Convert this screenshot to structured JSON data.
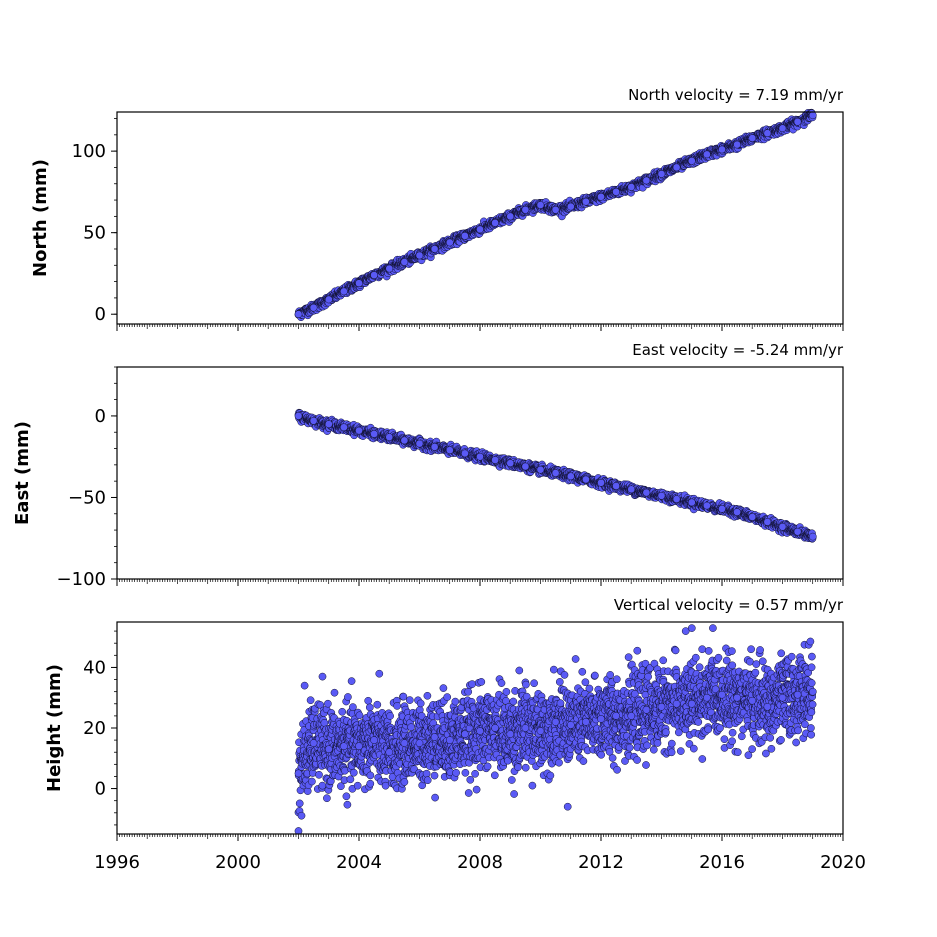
{
  "colors": {
    "marker_fill": "#5a5af5",
    "marker_edge": "#111133",
    "axis": "#000000"
  },
  "chart_data": [
    {
      "type": "scatter",
      "title": "North velocity = 7.19 mm/yr",
      "ylabel": "North (mm)",
      "xlabel": "",
      "xlim": [
        1996,
        2020
      ],
      "ylim": [
        -6,
        124
      ],
      "yticks": [
        0,
        50,
        100
      ],
      "yticklabels": [
        "0",
        "50",
        "100"
      ],
      "grid": false,
      "series": [
        {
          "x": [
            2002.0,
            2002.5,
            2003.0,
            2003.5,
            2004.0,
            2004.5,
            2005.0,
            2005.5,
            2006.0,
            2006.5,
            2007.0,
            2007.5,
            2008.0,
            2008.5,
            2009.0,
            2009.5,
            2010.0,
            2010.5,
            2011.0,
            2011.5,
            2012.0,
            2012.5,
            2013.0,
            2013.5,
            2014.0,
            2014.5,
            2015.0,
            2015.5,
            2016.0,
            2016.5,
            2017.0,
            2017.5,
            2018.0,
            2018.5,
            2019.0
          ],
          "y": [
            0,
            4,
            9,
            14,
            19,
            24,
            28,
            32,
            36,
            40,
            44,
            48,
            52,
            56,
            60,
            64,
            67,
            64,
            66,
            69,
            72,
            75,
            78,
            82,
            86,
            90,
            94,
            98,
            101,
            104,
            108,
            111,
            114,
            118,
            122
          ]
        }
      ]
    },
    {
      "type": "scatter",
      "title": "East velocity = -5.24 mm/yr",
      "ylabel": "East (mm)",
      "xlabel": "",
      "xlim": [
        1996,
        2020
      ],
      "ylim": [
        -100,
        30
      ],
      "yticks": [
        0,
        -50,
        -100
      ],
      "yticklabels": [
        "0",
        "−50",
        "−100"
      ],
      "grid": false,
      "series": [
        {
          "x": [
            2002.0,
            2002.5,
            2003.0,
            2003.5,
            2004.0,
            2004.5,
            2005.0,
            2005.5,
            2006.0,
            2006.5,
            2007.0,
            2007.5,
            2008.0,
            2008.5,
            2009.0,
            2009.5,
            2010.0,
            2010.5,
            2011.0,
            2011.5,
            2012.0,
            2012.5,
            2013.0,
            2013.5,
            2014.0,
            2014.5,
            2015.0,
            2015.5,
            2016.0,
            2016.5,
            2017.0,
            2017.5,
            2018.0,
            2018.5,
            2019.0
          ],
          "y": [
            0,
            -3,
            -5,
            -7,
            -9,
            -11,
            -13,
            -15,
            -17,
            -19,
            -21,
            -23,
            -25,
            -27,
            -29,
            -31,
            -33,
            -35,
            -37,
            -39,
            -41,
            -43,
            -45,
            -47,
            -49,
            -51,
            -53,
            -55,
            -57,
            -59,
            -62,
            -65,
            -68,
            -71,
            -74
          ]
        }
      ]
    },
    {
      "type": "scatter",
      "title": "Vertical velocity = 0.57 mm/yr",
      "ylabel": "Height (mm)",
      "xlabel": "",
      "xlim": [
        1996,
        2020
      ],
      "ylim": [
        -15,
        55
      ],
      "yticks": [
        0,
        20,
        40
      ],
      "yticklabels": [
        "0",
        "20",
        "40"
      ],
      "xticks": [
        1996,
        2000,
        2004,
        2008,
        2012,
        2016,
        2020
      ],
      "xticklabels": [
        "1996",
        "2000",
        "2004",
        "2008",
        "2012",
        "2016",
        "2020"
      ],
      "grid": false,
      "series": [
        {
          "x": [
            2002.0,
            2002.5,
            2003.0,
            2003.5,
            2004.0,
            2004.5,
            2005.0,
            2005.5,
            2006.0,
            2006.5,
            2007.0,
            2007.5,
            2008.0,
            2008.5,
            2009.0,
            2009.5,
            2010.0,
            2010.5,
            2011.0,
            2011.5,
            2012.0,
            2012.5,
            2013.0,
            2013.5,
            2014.0,
            2014.5,
            2015.0,
            2015.5,
            2016.0,
            2016.5,
            2017.0,
            2017.5,
            2018.0,
            2018.5,
            2019.0
          ],
          "y": [
            5,
            15,
            13,
            14,
            14,
            16,
            12,
            15,
            15,
            17,
            16,
            18,
            19,
            20,
            18,
            20,
            19,
            22,
            21,
            22,
            23,
            24,
            24,
            26,
            27,
            28,
            28,
            30,
            31,
            30,
            29,
            27,
            30,
            31,
            32
          ]
        },
        {
          "x": [
            2002.2,
            2014.8,
            2015.0,
            2015.7,
            2010.9,
            2002.0,
            2009.3
          ],
          "y": [
            34,
            52,
            53,
            53,
            -6,
            -14,
            39
          ]
        }
      ]
    }
  ]
}
